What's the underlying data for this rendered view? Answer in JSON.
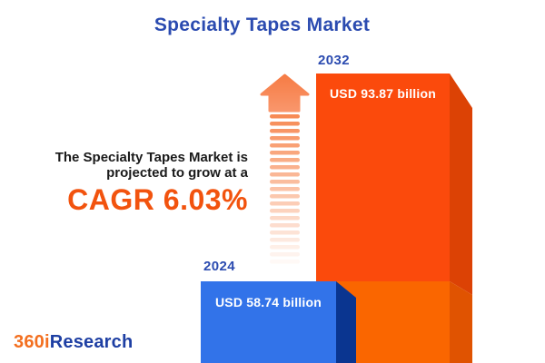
{
  "title": "Specialty Tapes Market",
  "annotation": {
    "line1": "The Specialty Tapes Market is",
    "line2": "projected to grow at a",
    "cagr": "CAGR 6.03%"
  },
  "chart_data": {
    "type": "bar",
    "title": "Specialty Tapes Market",
    "categories": [
      "2024",
      "2032"
    ],
    "values": [
      58.74,
      93.87
    ],
    "value_unit": "USD billion",
    "bar_labels": [
      "USD 58.74 billion",
      "USD 93.87 billion"
    ],
    "cagr_percent": 6.03,
    "annotation_text": "The Specialty Tapes Market is projected to grow at a CAGR 6.03%",
    "legend": false,
    "grid": false,
    "axes": false,
    "style": "pictorial 3D bars labeled directly, growth arrow between annotation and projected bar"
  },
  "logo": {
    "prefix": "360i",
    "suffix": "Research"
  },
  "colors": {
    "title_blue": "#2B4BB0",
    "text_dark": "#1A1A1A",
    "cagr_orange": "#F2530E",
    "bar_2032_front": "#FB4A0C",
    "bar_2032_side": "#DC4205",
    "bar_2032_front_lower": "#FA6600",
    "bar_2032_side_lower": "#E05301",
    "bar_2024_front": "#3273E9",
    "bar_2024_side": "#0A3590",
    "arrow_head_top": "#F67C45",
    "arrow_head_bottom": "#F9966B",
    "arrow_stripe": "#F78B55",
    "logo_orange": "#F36F1F",
    "logo_blue": "#1E3FA3",
    "label_white": "#FFFFFF",
    "background": "#FFFFFF"
  }
}
